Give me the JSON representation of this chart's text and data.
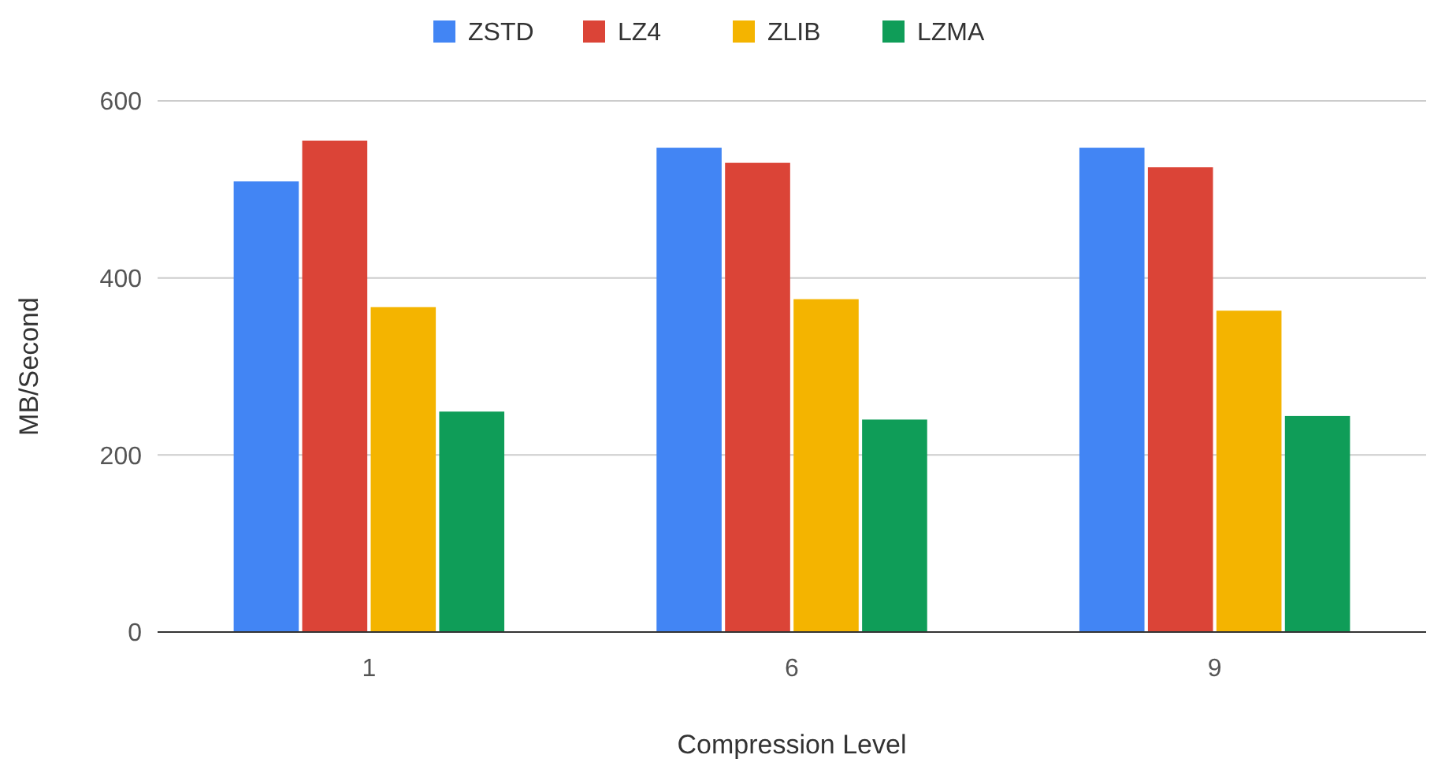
{
  "chart_data": {
    "type": "bar",
    "xlabel": "Compression Level",
    "ylabel": "MB/Second",
    "categories": [
      "1",
      "6",
      "9"
    ],
    "series": [
      {
        "name": "ZSTD",
        "color": "#4285f4",
        "values": [
          509,
          547,
          547
        ]
      },
      {
        "name": "LZ4",
        "color": "#db4437",
        "values": [
          555,
          530,
          525
        ]
      },
      {
        "name": "ZLIB",
        "color": "#f4b400",
        "values": [
          367,
          376,
          363
        ]
      },
      {
        "name": "LZMA",
        "color": "#0f9d58",
        "values": [
          249,
          240,
          244
        ]
      }
    ],
    "ylim": [
      0,
      600
    ],
    "yticks": [
      0,
      200,
      400,
      600
    ],
    "grid": "y",
    "legend": "top"
  }
}
